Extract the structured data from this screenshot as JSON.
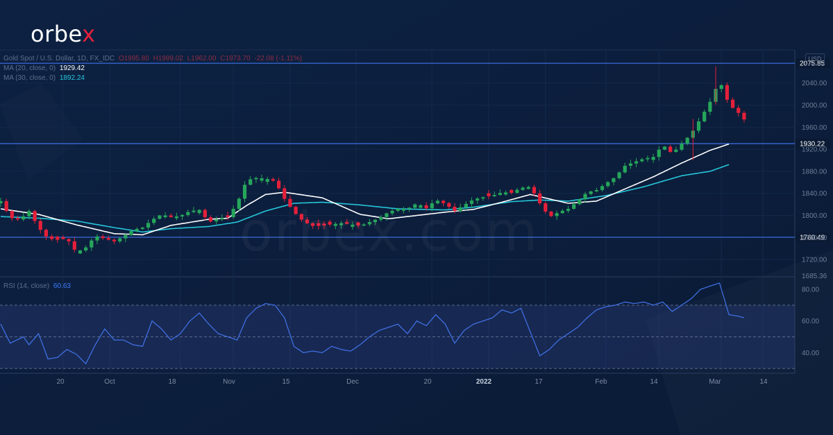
{
  "brand": {
    "logo_main": "orbe",
    "logo_x": "x",
    "watermark": "orbex.com"
  },
  "legend": {
    "symbol": "Gold Spot / U.S. Dollar, 1D, FX_IDC",
    "ohlc": [
      "O1995.80",
      "H1999.02",
      "L1962.00",
      "C1973.70",
      "-22.08 (-1.11%)"
    ],
    "ma20": {
      "label": "MA (20, close, 0)",
      "value": "1929.42"
    },
    "ma30": {
      "label": "MA (30, close, 0)",
      "value": "1892.24"
    },
    "rsi": {
      "label": "RSI (14, close)",
      "value": "60.63"
    }
  },
  "currency": "USD",
  "colors": {
    "background": "#0c1e3a",
    "up": "#26a65b",
    "down": "#e5203a",
    "ma20": "#ffffff",
    "ma30": "#26c6da",
    "rsi": "#3f6fe0",
    "level_line": "#3f72e8"
  },
  "chart_data": [
    {
      "type": "candlestick",
      "title": "Gold Spot / U.S. Dollar, 1D, FX_IDC",
      "ylabel": "USD",
      "ylim": [
        1690,
        2100
      ],
      "y_ticks": [
        "2040.00",
        "2000.00",
        "1960.00",
        "1920.00",
        "1880.00",
        "1840.00",
        "1800.00",
        "1760.00",
        "1720.00"
      ],
      "x_ticks": [
        "20",
        "Oct",
        "18",
        "Nov",
        "15",
        "Dec",
        "20",
        "2022",
        "17",
        "Feb",
        "14",
        "Mar",
        "14"
      ],
      "levels": [
        2075.85,
        1930.22,
        1760.49
      ],
      "level_labels": [
        "2075.85",
        "1930.22",
        "1760.49"
      ],
      "bottom_label": "1685.36",
      "close_anchors": [
        [
          0,
          1826
        ],
        [
          5,
          1796
        ],
        [
          10,
          1792
        ],
        [
          15,
          1808
        ],
        [
          20,
          1778
        ],
        [
          25,
          1758
        ],
        [
          30,
          1756
        ],
        [
          35,
          1758
        ],
        [
          40,
          1733
        ],
        [
          45,
          1742
        ],
        [
          50,
          1763
        ],
        [
          55,
          1758
        ],
        [
          60,
          1753
        ],
        [
          65,
          1762
        ],
        [
          70,
          1774
        ],
        [
          75,
          1778
        ],
        [
          80,
          1792
        ],
        [
          85,
          1802
        ],
        [
          90,
          1797
        ],
        [
          95,
          1799
        ],
        [
          100,
          1808
        ],
        [
          105,
          1810
        ],
        [
          110,
          1788
        ],
        [
          115,
          1794
        ],
        [
          120,
          1797
        ],
        [
          125,
          1822
        ],
        [
          130,
          1864
        ],
        [
          135,
          1868
        ],
        [
          140,
          1867
        ],
        [
          145,
          1862
        ],
        [
          150,
          1830
        ],
        [
          155,
          1806
        ],
        [
          160,
          1789
        ],
        [
          165,
          1781
        ],
        [
          170,
          1781
        ],
        [
          175,
          1784
        ],
        [
          180,
          1786
        ],
        [
          185,
          1784
        ],
        [
          190,
          1781
        ],
        [
          195,
          1788
        ],
        [
          200,
          1795
        ],
        [
          205,
          1806
        ],
        [
          210,
          1812
        ],
        [
          215,
          1812
        ],
        [
          220,
          1822
        ],
        [
          225,
          1813
        ],
        [
          230,
          1828
        ],
        [
          235,
          1821
        ],
        [
          240,
          1808
        ],
        [
          245,
          1819
        ],
        [
          250,
          1829
        ],
        [
          255,
          1833
        ],
        [
          260,
          1836
        ],
        [
          265,
          1842
        ],
        [
          270,
          1841
        ],
        [
          275,
          1850
        ],
        [
          280,
          1852
        ],
        [
          285,
          1822
        ],
        [
          290,
          1797
        ],
        [
          295,
          1806
        ],
        [
          300,
          1812
        ],
        [
          305,
          1826
        ],
        [
          310,
          1842
        ],
        [
          315,
          1846
        ],
        [
          320,
          1858
        ],
        [
          325,
          1870
        ],
        [
          330,
          1890
        ],
        [
          335,
          1897
        ],
        [
          340,
          1903
        ],
        [
          345,
          1906
        ],
        [
          350,
          1928
        ],
        [
          355,
          1912
        ],
        [
          360,
          1930
        ],
        [
          365,
          1948
        ],
        [
          370,
          1976
        ],
        [
          375,
          2006
        ],
        [
          380,
          2045
        ],
        [
          385,
          2001
        ],
        [
          390,
          1986
        ],
        [
          393,
          1974
        ]
      ],
      "ma20_anchors": [
        [
          0,
          1812
        ],
        [
          20,
          1802
        ],
        [
          40,
          1783
        ],
        [
          60,
          1767
        ],
        [
          75,
          1765
        ],
        [
          90,
          1782
        ],
        [
          110,
          1793
        ],
        [
          120,
          1795
        ],
        [
          130,
          1818
        ],
        [
          140,
          1838
        ],
        [
          150,
          1842
        ],
        [
          170,
          1832
        ],
        [
          190,
          1802
        ],
        [
          205,
          1794
        ],
        [
          220,
          1800
        ],
        [
          235,
          1806
        ],
        [
          250,
          1811
        ],
        [
          265,
          1824
        ],
        [
          280,
          1838
        ],
        [
          290,
          1830
        ],
        [
          300,
          1822
        ],
        [
          315,
          1826
        ],
        [
          330,
          1848
        ],
        [
          345,
          1870
        ],
        [
          360,
          1895
        ],
        [
          375,
          1918
        ],
        [
          385,
          1929.42
        ]
      ],
      "ma30_anchors": [
        [
          0,
          1798
        ],
        [
          20,
          1795
        ],
        [
          40,
          1790
        ],
        [
          60,
          1778
        ],
        [
          75,
          1770
        ],
        [
          90,
          1776
        ],
        [
          110,
          1780
        ],
        [
          125,
          1788
        ],
        [
          140,
          1808
        ],
        [
          155,
          1822
        ],
        [
          170,
          1824
        ],
        [
          190,
          1819
        ],
        [
          210,
          1812
        ],
        [
          235,
          1810
        ],
        [
          250,
          1815
        ],
        [
          270,
          1825
        ],
        [
          285,
          1828
        ],
        [
          300,
          1826
        ],
        [
          320,
          1836
        ],
        [
          340,
          1852
        ],
        [
          360,
          1872
        ],
        [
          375,
          1880
        ],
        [
          385,
          1892.24
        ]
      ]
    },
    {
      "type": "line",
      "title": "RSI (14, close)",
      "ylim": [
        27,
        87
      ],
      "y_ticks": [
        "80.00",
        "60.00",
        "40.00"
      ],
      "band": [
        30,
        70
      ],
      "midline": 50,
      "rsi_anchors": [
        [
          0,
          58
        ],
        [
          5,
          46
        ],
        [
          12,
          50
        ],
        [
          15,
          45
        ],
        [
          20,
          52
        ],
        [
          25,
          36
        ],
        [
          30,
          37
        ],
        [
          35,
          42
        ],
        [
          40,
          39
        ],
        [
          45,
          33
        ],
        [
          50,
          45
        ],
        [
          55,
          55
        ],
        [
          60,
          48
        ],
        [
          65,
          48
        ],
        [
          70,
          45
        ],
        [
          75,
          44
        ],
        [
          80,
          60
        ],
        [
          85,
          55
        ],
        [
          90,
          48
        ],
        [
          95,
          52
        ],
        [
          100,
          60
        ],
        [
          105,
          65
        ],
        [
          110,
          58
        ],
        [
          115,
          52
        ],
        [
          120,
          50
        ],
        [
          125,
          48
        ],
        [
          130,
          62
        ],
        [
          135,
          68
        ],
        [
          140,
          71
        ],
        [
          145,
          70
        ],
        [
          150,
          62
        ],
        [
          155,
          44
        ],
        [
          160,
          40
        ],
        [
          165,
          41
        ],
        [
          170,
          40
        ],
        [
          175,
          44
        ],
        [
          180,
          42
        ],
        [
          185,
          41
        ],
        [
          190,
          45
        ],
        [
          195,
          50
        ],
        [
          200,
          54
        ],
        [
          205,
          56
        ],
        [
          210,
          58
        ],
        [
          215,
          52
        ],
        [
          220,
          60
        ],
        [
          225,
          57
        ],
        [
          230,
          64
        ],
        [
          235,
          58
        ],
        [
          240,
          46
        ],
        [
          245,
          54
        ],
        [
          250,
          58
        ],
        [
          255,
          60
        ],
        [
          260,
          62
        ],
        [
          265,
          67
        ],
        [
          270,
          65
        ],
        [
          275,
          68
        ],
        [
          285,
          38
        ],
        [
          290,
          42
        ],
        [
          295,
          48
        ],
        [
          300,
          52
        ],
        [
          305,
          56
        ],
        [
          310,
          62
        ],
        [
          315,
          67
        ],
        [
          320,
          69
        ],
        [
          325,
          70
        ],
        [
          330,
          72
        ],
        [
          335,
          71
        ],
        [
          340,
          72
        ],
        [
          345,
          70
        ],
        [
          350,
          72
        ],
        [
          355,
          66
        ],
        [
          360,
          70
        ],
        [
          365,
          74
        ],
        [
          370,
          80
        ],
        [
          375,
          82
        ],
        [
          380,
          84
        ],
        [
          385,
          64
        ],
        [
          390,
          63
        ],
        [
          393,
          62
        ]
      ]
    }
  ]
}
